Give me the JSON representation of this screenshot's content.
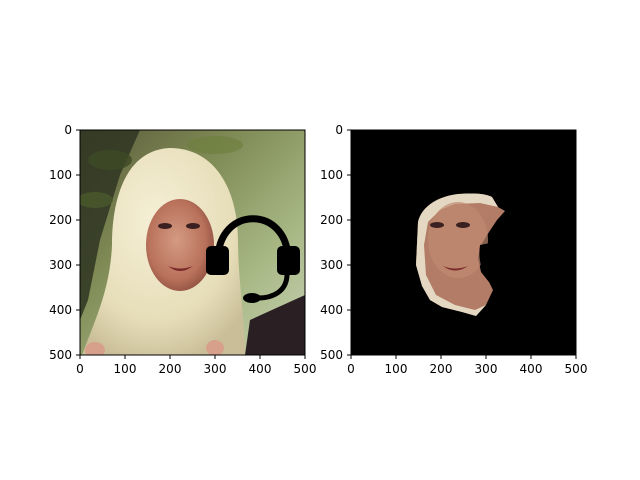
{
  "chart_data": [
    {
      "type": "image",
      "title": "",
      "xlabel": "",
      "ylabel": "",
      "xlim": [
        0,
        500
      ],
      "ylim": [
        500,
        0
      ],
      "xticks": [
        0,
        100,
        200,
        300,
        400,
        500
      ],
      "yticks": [
        0,
        100,
        200,
        300,
        400,
        500
      ],
      "content": "photo of a smiling woman wearing a white lace headscarf, with a black headset icon overlaid on the right side"
    },
    {
      "type": "image",
      "title": "",
      "xlabel": "",
      "ylabel": "",
      "xlim": [
        0,
        500
      ],
      "ylim": [
        500,
        0
      ],
      "xticks": [
        0,
        100,
        200,
        300,
        400,
        500
      ],
      "yticks": [
        0,
        100,
        200,
        300,
        400,
        500
      ],
      "content": "black background with the segmented face region of the same woman; the area covered by the headset icon is cut out",
      "background_color": "#000000"
    }
  ],
  "colors": {
    "axis": "#000000",
    "mask_background": "#000000"
  },
  "icons": {
    "overlay": "headset-icon"
  }
}
